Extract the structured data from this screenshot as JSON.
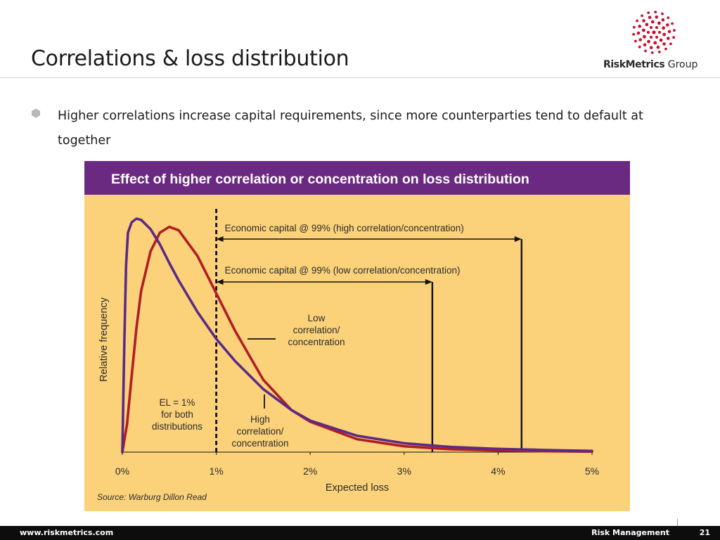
{
  "slide": {
    "title": "Correlations & loss distribution",
    "bullet": "Higher correlations increase capital requirements, since more counterparties tend to default at together"
  },
  "logo": {
    "brand_bold": "RiskMetrics",
    "brand_light": " Group"
  },
  "footer": {
    "url": "www.riskmetrics.com",
    "section": "Risk Management",
    "page": "21"
  },
  "chart_data": {
    "type": "line",
    "title": "Effect of higher correlation or concentration on loss distribution",
    "xlabel": "Expected loss",
    "ylabel": "Relative frequency",
    "source": "Source: Warburg Dillon Read",
    "x_ticks": [
      "0%",
      "1%",
      "2%",
      "3%",
      "4%",
      "5%"
    ],
    "xlim": [
      0,
      5
    ],
    "ylim": [
      0,
      1
    ],
    "series": [
      {
        "name": "High correlation/ concentration",
        "color": "#5b2a86",
        "x": [
          0,
          0.02,
          0.04,
          0.06,
          0.1,
          0.15,
          0.2,
          0.3,
          0.4,
          0.5,
          0.6,
          0.8,
          1.0,
          1.2,
          1.5,
          1.8,
          2.0,
          2.5,
          3.0,
          3.5,
          4.0,
          4.5,
          5.0
        ],
        "values": [
          0,
          0.45,
          0.8,
          0.94,
          0.985,
          1.0,
          0.995,
          0.955,
          0.89,
          0.81,
          0.735,
          0.6,
          0.485,
          0.39,
          0.27,
          0.18,
          0.135,
          0.07,
          0.038,
          0.022,
          0.014,
          0.009,
          0.005
        ]
      },
      {
        "name": "Low correlation/ concentration",
        "color": "#b01e24",
        "x": [
          0,
          0.05,
          0.1,
          0.15,
          0.2,
          0.3,
          0.4,
          0.5,
          0.6,
          0.8,
          1.0,
          1.2,
          1.5,
          1.8,
          2.0,
          2.5,
          3.0,
          3.5,
          4.0,
          4.5,
          5.0
        ],
        "values": [
          0,
          0.12,
          0.33,
          0.53,
          0.69,
          0.86,
          0.94,
          0.965,
          0.95,
          0.84,
          0.68,
          0.52,
          0.31,
          0.18,
          0.13,
          0.055,
          0.025,
          0.012,
          0.007,
          0.004,
          0.002
        ]
      }
    ],
    "markers": [
      {
        "name": "EL",
        "x": 1.0,
        "style": "dashed"
      },
      {
        "name": "capital-low",
        "x": 3.3,
        "style": "solid"
      },
      {
        "name": "capital-high",
        "x": 4.25,
        "style": "solid"
      }
    ],
    "annotations": {
      "capital_high": "Economic capital @ 99% (high correlation/concentration)",
      "capital_low": "Economic capital @ 99% (low correlation/concentration)",
      "low_label": [
        "Low",
        "correlation/",
        "concentration"
      ],
      "high_label": [
        "High",
        "correlation/",
        "concentration"
      ],
      "el_label": [
        "EL = 1%",
        "for both",
        "distributions"
      ]
    },
    "colors": {
      "header_bg": "#6b2a82",
      "plot_bg": "#fbd27a",
      "axis": "#111111",
      "text": "#2b2b2b"
    }
  }
}
